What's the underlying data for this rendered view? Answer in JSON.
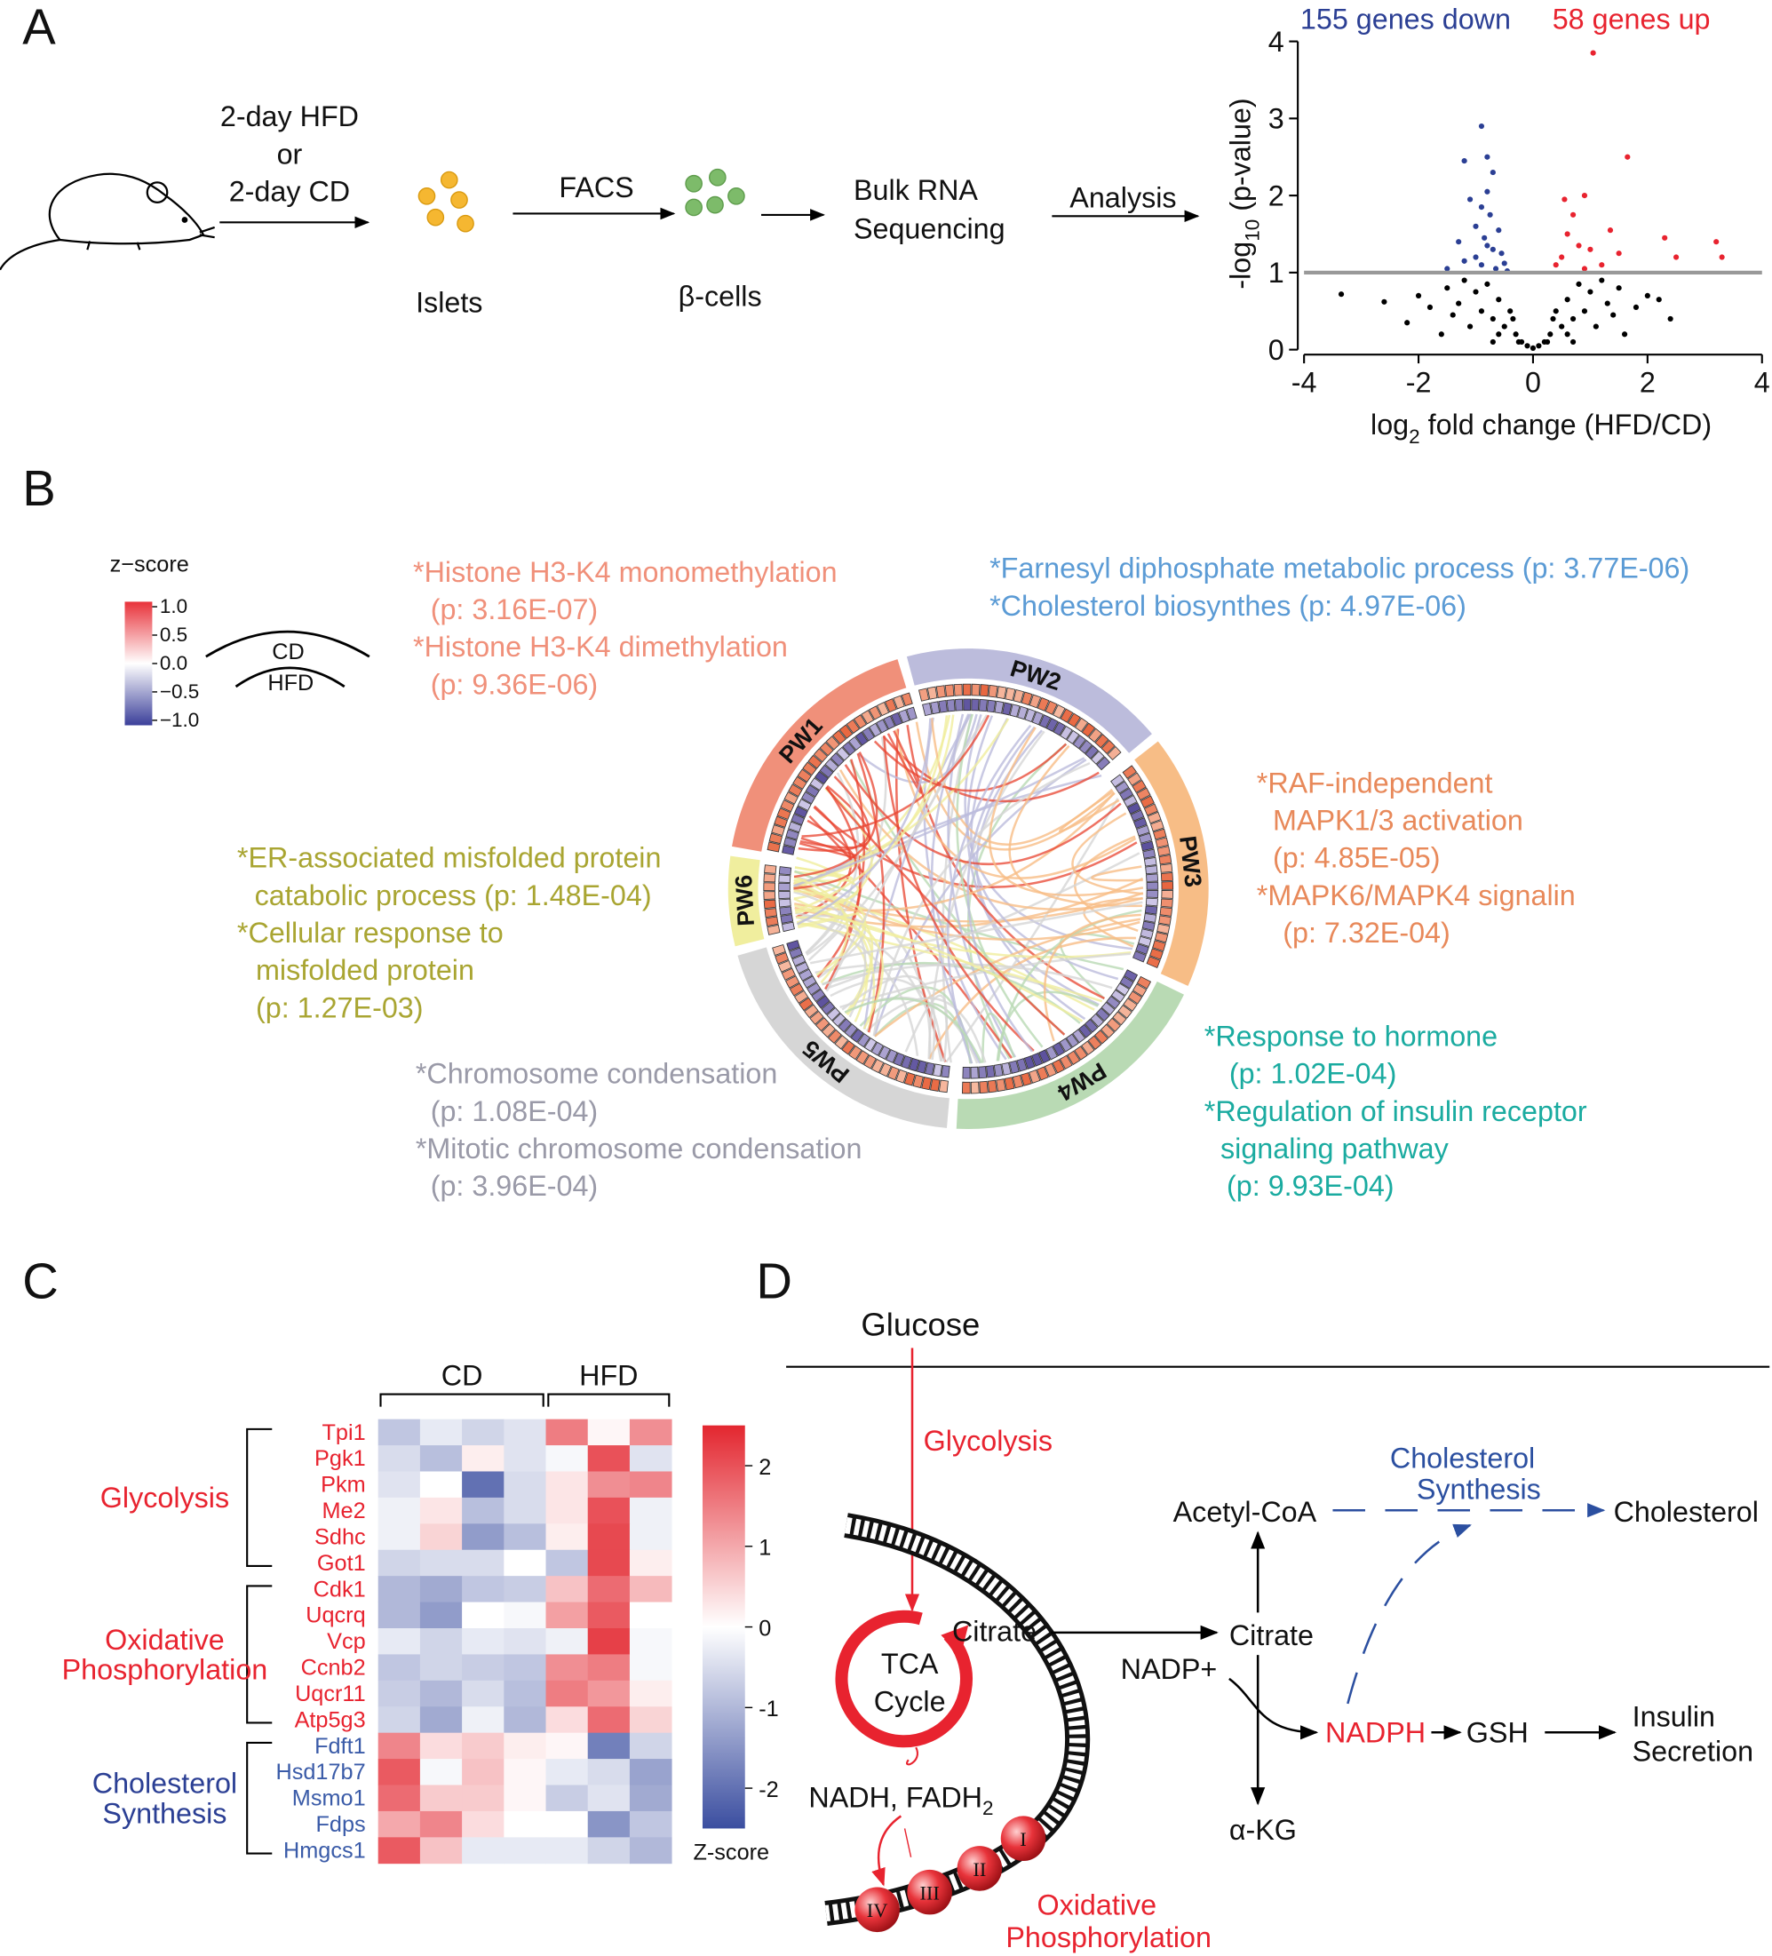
{
  "panels": {
    "A": {
      "label": "A",
      "diet": [
        "2-day HFD",
        "or",
        "2-day CD"
      ],
      "islets": "Islets",
      "facs": "FACS",
      "beta_cells": "β-cells",
      "sequencing": [
        "Bulk RNA",
        "Sequencing"
      ],
      "analysis": "Analysis",
      "volcano": {
        "type": "scatter",
        "down_label": "155 genes down",
        "up_label": "58 genes up",
        "down_color": "#2b3f94",
        "up_color": "#e8232f",
        "other_color": "#000000",
        "threshold_color": "#999999",
        "x_label": {
          "pre": "log",
          "sub": "2",
          "post": " fold change (HFD/CD)"
        },
        "y_label": {
          "pre": "-log",
          "sub": "10",
          "post": " (p-value)"
        },
        "xlim": [
          -4,
          4
        ],
        "ylim": [
          0,
          4
        ],
        "xticks": [
          -4,
          -2,
          0,
          2,
          4
        ],
        "yticks": [
          0,
          1,
          2,
          3,
          4
        ],
        "threshold": 1,
        "x": [
          -0.9,
          -0.8,
          -1.2,
          -0.7,
          -0.8,
          -1.1,
          -0.9,
          -0.75,
          -1.0,
          -0.6,
          -0.85,
          -1.3,
          -0.7,
          -0.55,
          -1.0,
          -0.5,
          -1.5,
          -0.65,
          -0.9,
          -1.2,
          -0.45,
          -0.8,
          1.05,
          1.65,
          0.9,
          0.55,
          0.7,
          1.35,
          0.6,
          2.3,
          3.2,
          0.8,
          1.0,
          1.5,
          0.5,
          2.5,
          3.3,
          0.4,
          1.2,
          0.9,
          -3.35,
          -2.6,
          -2.0,
          -1.8,
          -1.5,
          -1.3,
          -1.2,
          -1.0,
          -0.9,
          -0.8,
          -0.7,
          -0.6,
          -0.5,
          -0.4,
          -0.3,
          -0.2,
          -0.1,
          0.0,
          0.1,
          0.2,
          0.3,
          0.4,
          0.5,
          0.6,
          0.7,
          0.8,
          0.9,
          1.0,
          1.2,
          1.3,
          1.5,
          1.8,
          2.0,
          2.2,
          1.1,
          -1.1,
          1.6,
          -1.6,
          0.7,
          -0.7,
          2.4,
          -2.2,
          -0.35,
          0.35,
          -0.25,
          0.25,
          -0.6,
          0.6,
          1.4,
          -1.4
        ],
        "y": [
          2.9,
          2.5,
          2.45,
          2.3,
          2.05,
          1.95,
          1.85,
          1.75,
          1.6,
          1.55,
          1.45,
          1.4,
          1.3,
          1.25,
          1.2,
          1.12,
          1.05,
          1.05,
          1.1,
          1.15,
          1.02,
          1.35,
          3.85,
          2.5,
          2.0,
          1.95,
          1.75,
          1.55,
          1.5,
          1.45,
          1.4,
          1.35,
          1.3,
          1.25,
          1.2,
          1.2,
          1.2,
          1.1,
          1.1,
          1.05,
          0.72,
          0.62,
          0.7,
          0.55,
          0.8,
          0.6,
          0.9,
          0.75,
          0.5,
          0.85,
          0.4,
          0.65,
          0.3,
          0.5,
          0.2,
          0.1,
          0.05,
          0.02,
          0.05,
          0.1,
          0.2,
          0.5,
          0.3,
          0.65,
          0.4,
          0.85,
          0.5,
          0.75,
          0.9,
          0.6,
          0.8,
          0.55,
          0.7,
          0.65,
          0.3,
          0.3,
          0.2,
          0.2,
          0.1,
          0.1,
          0.4,
          0.35,
          0.4,
          0.4,
          0.1,
          0.1,
          0.2,
          0.2,
          0.45,
          0.45
        ]
      }
    },
    "B": {
      "label": "B",
      "legend_title": "z−score",
      "legend_ticks": [
        {
          "value": 1,
          "label": "1.0"
        },
        {
          "value": 0.5,
          "label": "0.5"
        },
        {
          "value": 0,
          "label": "0.0"
        },
        {
          "value": -0.5,
          "label": "−0.5"
        },
        {
          "value": -1,
          "label": "−1.0"
        }
      ],
      "legend_colors": [
        "#e8323a",
        "#ffffff",
        "#3b3f9a"
      ],
      "ring_labels": [
        "CD",
        "HFD"
      ],
      "sectors": [
        {
          "name": "PW1",
          "color": "#f0907a"
        },
        {
          "name": "PW2",
          "color": "#bcbcdc"
        },
        {
          "name": "PW3",
          "color": "#f7bd86"
        },
        {
          "name": "PW4",
          "color": "#b9dab4"
        },
        {
          "name": "PW5",
          "color": "#d6d6d6"
        },
        {
          "name": "PW6",
          "color": "#f0ee9e"
        }
      ],
      "pathways": [
        {
          "color": "#f0907a",
          "lines": [
            "*Histone H3-K4 monomethylation",
            "(p: 3.16E-07)",
            "*Histone H3-K4 dimethylation",
            "(p: 9.36E-06)"
          ]
        },
        {
          "color": "#5b9bd5",
          "lines": [
            "*Farnesyl diphosphate metabolic process (p: 3.77E-06)",
            "*Cholesterol biosynthes (p: 4.97E-06)"
          ]
        },
        {
          "color": "#e8895a",
          "lines": [
            "*RAF-independent",
            "MAPK1/3 activation",
            "(p: 4.85E-05)",
            "*MAPK6/MAPK4 signalin",
            "(p: 7.32E-04)"
          ]
        },
        {
          "color": "#a9a532",
          "lines": [
            "*ER-associated misfolded protein",
            "catabolic process (p: 1.48E-04)",
            "*Cellular response to",
            "misfolded protein",
            "(p: 1.27E-03)"
          ]
        },
        {
          "color": "#9a9aa8",
          "lines": [
            "*Chromosome condensation",
            "(p: 1.08E-04)",
            "*Mitotic chromosome condensation",
            "(p: 3.96E-04)"
          ]
        },
        {
          "color": "#1aaba0",
          "lines": [
            "*Response to hormone",
            "(p: 1.02E-04)",
            "*Regulation of insulin receptor",
            "signaling pathway",
            "(p: 9.93E-04)"
          ]
        }
      ]
    },
    "C": {
      "label": "C",
      "type": "heatmap",
      "column_groups": [
        "CD",
        "HFD"
      ],
      "zlim": [
        -2.5,
        2.5
      ],
      "zticks": [
        2,
        1,
        0,
        -1,
        -2
      ],
      "zlabel": "Z-score",
      "colors": [
        "#3b4ea0",
        "#ffffff",
        "#e3262f"
      ],
      "groups": [
        {
          "name": [
            "Glycolysis"
          ],
          "color": "#e8232f",
          "genes": [
            "Tpi1",
            "Pgk1",
            "Pkm",
            "Me2",
            "Sdhc",
            "Got1"
          ],
          "values": [
            [
              -0.8,
              -0.3,
              -0.6,
              -0.4,
              1.5,
              0.1,
              1.3
            ],
            [
              -0.5,
              -0.9,
              0.2,
              -0.4,
              -0.1,
              2.0,
              -0.4
            ],
            [
              -0.4,
              0.0,
              -2.0,
              -0.5,
              0.3,
              1.3,
              1.4
            ],
            [
              -0.2,
              0.3,
              -0.9,
              -0.5,
              0.3,
              2.0,
              -0.2
            ],
            [
              -0.2,
              0.5,
              -1.4,
              -0.9,
              0.2,
              2.1,
              -0.2
            ],
            [
              -0.6,
              -0.5,
              -0.5,
              0.0,
              -0.8,
              2.1,
              0.2
            ]
          ]
        },
        {
          "name": [
            "Oxidative",
            "Phosphorylation"
          ],
          "color": "#e8232f",
          "genes": [
            "Cdk1",
            "Uqcrq",
            "Vcp",
            "Ccnb2",
            "Uqcr11",
            "Atp5g3"
          ],
          "values": [
            [
              -1.0,
              -1.2,
              -0.8,
              -0.7,
              0.7,
              1.7,
              0.8
            ],
            [
              -1.0,
              -1.4,
              0.0,
              -0.1,
              1.1,
              1.9,
              0.0
            ],
            [
              -0.3,
              -0.6,
              -0.3,
              -0.4,
              -0.2,
              2.2,
              -0.1
            ],
            [
              -0.8,
              -0.6,
              -0.7,
              -0.8,
              1.3,
              1.5,
              -0.1
            ],
            [
              -0.7,
              -1.0,
              -0.5,
              -0.9,
              1.5,
              1.2,
              0.2
            ],
            [
              -0.6,
              -1.2,
              -0.2,
              -1.0,
              0.4,
              1.7,
              0.5
            ]
          ]
        },
        {
          "name": [
            "Cholesterol",
            "Synthesis"
          ],
          "color": "#2b3f94",
          "gene_color": "#3a5ba8",
          "genes": [
            "Fdft1",
            "Hsd17b7",
            "Msmo1",
            "Fdps",
            "Hmgcs1"
          ],
          "values": [
            [
              1.4,
              0.4,
              0.6,
              0.2,
              0.1,
              -1.8,
              -0.6
            ],
            [
              1.9,
              -0.1,
              0.7,
              0.1,
              -0.3,
              -0.5,
              -1.3
            ],
            [
              1.7,
              0.6,
              0.6,
              0.1,
              -0.7,
              -0.4,
              -1.2
            ],
            [
              1.0,
              1.4,
              0.4,
              0.0,
              0.0,
              -1.5,
              -0.8
            ],
            [
              1.9,
              0.7,
              -0.3,
              -0.3,
              -0.3,
              -0.6,
              -1.0
            ]
          ]
        }
      ]
    },
    "D": {
      "label": "D",
      "glucose": "Glucose",
      "glycolysis": "Glycolysis",
      "tca": [
        "TCA",
        "Cycle"
      ],
      "citrate_mito": "Citrate",
      "citrate_cyto": "Citrate",
      "acetyl_coa": "Acetyl-CoA",
      "akg": "α-KG",
      "nadp": "NADP+",
      "nadph": "NADPH",
      "gsh": "GSH",
      "insulin": [
        "Insulin",
        "Secretion"
      ],
      "chol_synthesis": [
        "Cholesterol",
        "Synthesis"
      ],
      "cholesterol": "Cholesterol",
      "nadh": "NADH,",
      "fadh": {
        "pre": "FADH",
        "sub": "2"
      },
      "complexes": [
        "I",
        "II",
        "III",
        "IV"
      ],
      "oxphos": [
        "Oxidative",
        "Phosphorylation"
      ]
    }
  }
}
